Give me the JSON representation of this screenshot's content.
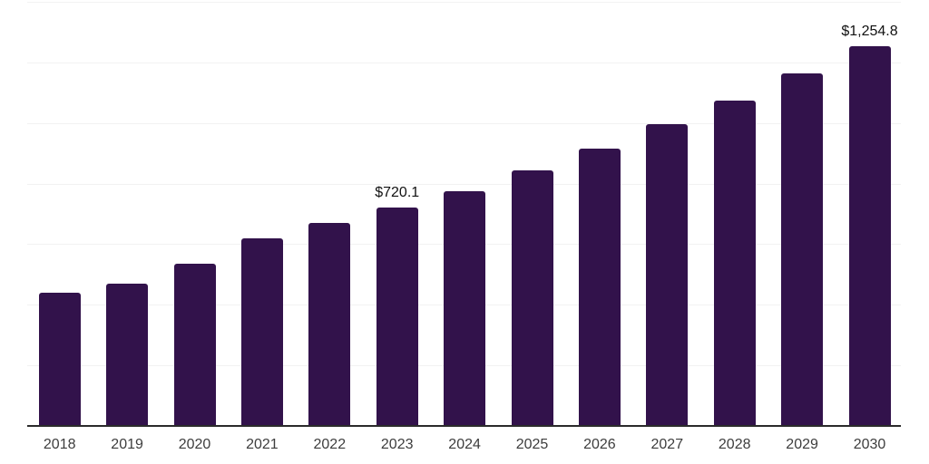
{
  "page": {
    "background_color": "#ffffff"
  },
  "chart_data": {
    "type": "bar",
    "title": "",
    "xlabel": "",
    "ylabel": "",
    "categories": [
      "2018",
      "2019",
      "2020",
      "2021",
      "2022",
      "2023",
      "2024",
      "2025",
      "2026",
      "2027",
      "2028",
      "2029",
      "2030"
    ],
    "values": [
      440,
      470,
      535,
      620,
      670,
      720.1,
      775,
      845,
      915,
      995,
      1075,
      1165,
      1254.8
    ],
    "point_labels": {
      "2023": "$720.1",
      "2030": "$1,254.8"
    },
    "ylim": [
      0,
      1400
    ],
    "gridline_step": 200,
    "grid": "horizontal-light",
    "legend": "none",
    "y_axis_labels_visible": false,
    "bar_color": "#32124b",
    "axis_color": "#2b2b2b",
    "gridline_color": "#f2f2f2",
    "value_label_color": "#111111",
    "tick_label_color": "#3d3d3d"
  }
}
